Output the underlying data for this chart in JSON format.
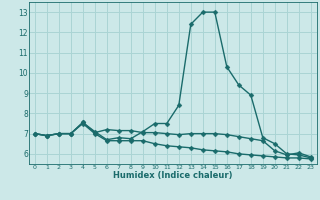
{
  "title": "",
  "xlabel": "Humidex (Indice chaleur)",
  "xlim": [
    -0.5,
    23.5
  ],
  "ylim": [
    5.5,
    13.5
  ],
  "yticks": [
    6,
    7,
    8,
    9,
    10,
    11,
    12,
    13
  ],
  "xticks": [
    0,
    1,
    2,
    3,
    4,
    5,
    6,
    7,
    8,
    9,
    10,
    11,
    12,
    13,
    14,
    15,
    16,
    17,
    18,
    19,
    20,
    21,
    22,
    23
  ],
  "bg_color": "#cce8e8",
  "grid_color": "#aad4d4",
  "line_color": "#1a6b6b",
  "curves": [
    [
      7.0,
      6.9,
      7.0,
      7.0,
      7.55,
      7.1,
      6.7,
      6.8,
      6.75,
      7.1,
      7.5,
      7.5,
      8.4,
      12.4,
      13.0,
      13.0,
      10.3,
      9.4,
      8.9,
      6.8,
      6.5,
      6.0,
      5.95,
      5.8
    ],
    [
      7.0,
      6.9,
      7.0,
      7.0,
      7.55,
      7.05,
      7.2,
      7.15,
      7.15,
      7.05,
      7.05,
      7.0,
      6.95,
      7.0,
      7.0,
      7.0,
      6.95,
      6.85,
      6.75,
      6.65,
      6.15,
      5.95,
      6.05,
      5.85
    ],
    [
      7.0,
      6.9,
      7.0,
      7.0,
      7.5,
      7.0,
      6.65,
      6.65,
      6.65,
      6.65,
      6.5,
      6.4,
      6.35,
      6.3,
      6.2,
      6.15,
      6.1,
      6.0,
      5.95,
      5.9,
      5.85,
      5.8,
      5.8,
      5.75
    ]
  ],
  "markersize": 2.5,
  "linewidth": 1.0
}
